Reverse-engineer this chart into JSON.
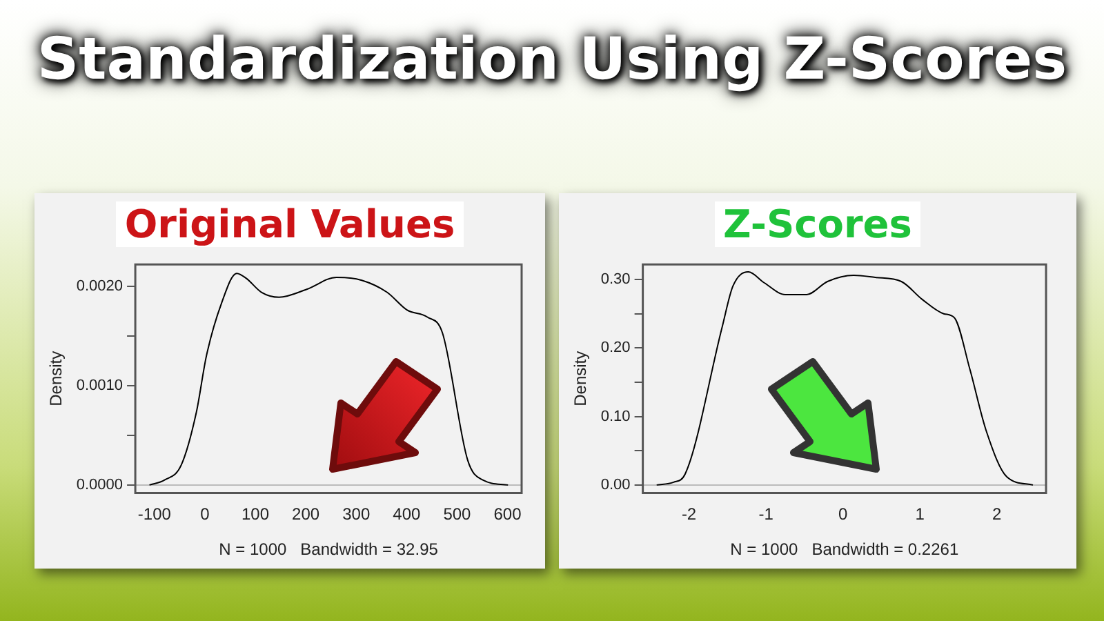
{
  "chart_data": [
    {
      "type": "line",
      "title": "Original Values",
      "xlabel": "N = 1000   Bandwidth = 32.95",
      "ylabel": "Density",
      "annotations": [
        "Standardization Using Z-Scores"
      ],
      "marker": "none",
      "grid": false,
      "legend": false,
      "x": [
        -110,
        -80,
        -47,
        -17,
        3,
        33,
        63,
        82,
        112,
        147,
        202,
        261,
        311,
        361,
        401,
        441,
        471,
        521,
        551,
        601
      ],
      "series": [
        {
          "color": "#000000",
          "values": [
            0,
            5e-05,
            0.0002,
            0.00073,
            0.0013,
            0.00183,
            0.00213,
            0.00208,
            0.00194,
            0.00189,
            0.00197,
            0.00209,
            0.00206,
            0.00194,
            0.00176,
            0.00169,
            0.00153,
            0.00025,
            5e-05,
            0
          ]
        }
      ],
      "xlim": [
        -138,
        628
      ],
      "ylim": [
        -8e-05,
        0.00222
      ],
      "xticks": [
        -100,
        0,
        100,
        200,
        300,
        400,
        500,
        600
      ],
      "yticks": [
        {
          "value": 0,
          "label": "0.0000"
        },
        {
          "value": 0.0005,
          "label": null
        },
        {
          "value": 0.001,
          "label": "0.0010"
        },
        {
          "value": 0.0015,
          "label": null
        },
        {
          "value": 0.002,
          "label": "0.0020"
        }
      ],
      "ref_lines": [
        {
          "axis": "y",
          "value": 0,
          "color": "#bbbbbb"
        }
      ]
    },
    {
      "type": "line",
      "title": "Z-Scores",
      "xlabel": "N = 1000   Bandwidth = 0.2261",
      "ylabel": "Density",
      "marker": "none",
      "grid": false,
      "legend": false,
      "x": [
        -2.42,
        -2.2,
        -2.05,
        -1.57,
        -1.43,
        -1.23,
        -1.02,
        -0.75,
        -0.47,
        -0.2,
        0.14,
        0.42,
        0.76,
        1.03,
        1.31,
        1.45,
        1.65,
        1.86,
        2.13,
        2.47
      ],
      "series": [
        {
          "color": "#000000",
          "values": [
            0,
            0.004,
            0.016,
            0.23,
            0.29,
            0.311,
            0.295,
            0.278,
            0.278,
            0.297,
            0.306,
            0.303,
            0.297,
            0.271,
            0.25,
            0.244,
            0.169,
            0.08,
            0.012,
            0
          ]
        }
      ],
      "xlim": [
        -2.6,
        2.64
      ],
      "ylim": [
        -0.0116,
        0.322
      ],
      "xticks": [
        -2,
        -1,
        0,
        1,
        2
      ],
      "yticks": [
        {
          "value": 0,
          "label": "0.00"
        },
        {
          "value": 0.05,
          "label": null
        },
        {
          "value": 0.1,
          "label": "0.10"
        },
        {
          "value": 0.15,
          "label": null
        },
        {
          "value": 0.2,
          "label": "0.20"
        },
        {
          "value": 0.25,
          "label": null
        },
        {
          "value": 0.3,
          "label": "0.30"
        }
      ],
      "ref_lines": [
        {
          "axis": "y",
          "value": 0,
          "color": "#bbbbbb"
        }
      ]
    }
  ]
}
